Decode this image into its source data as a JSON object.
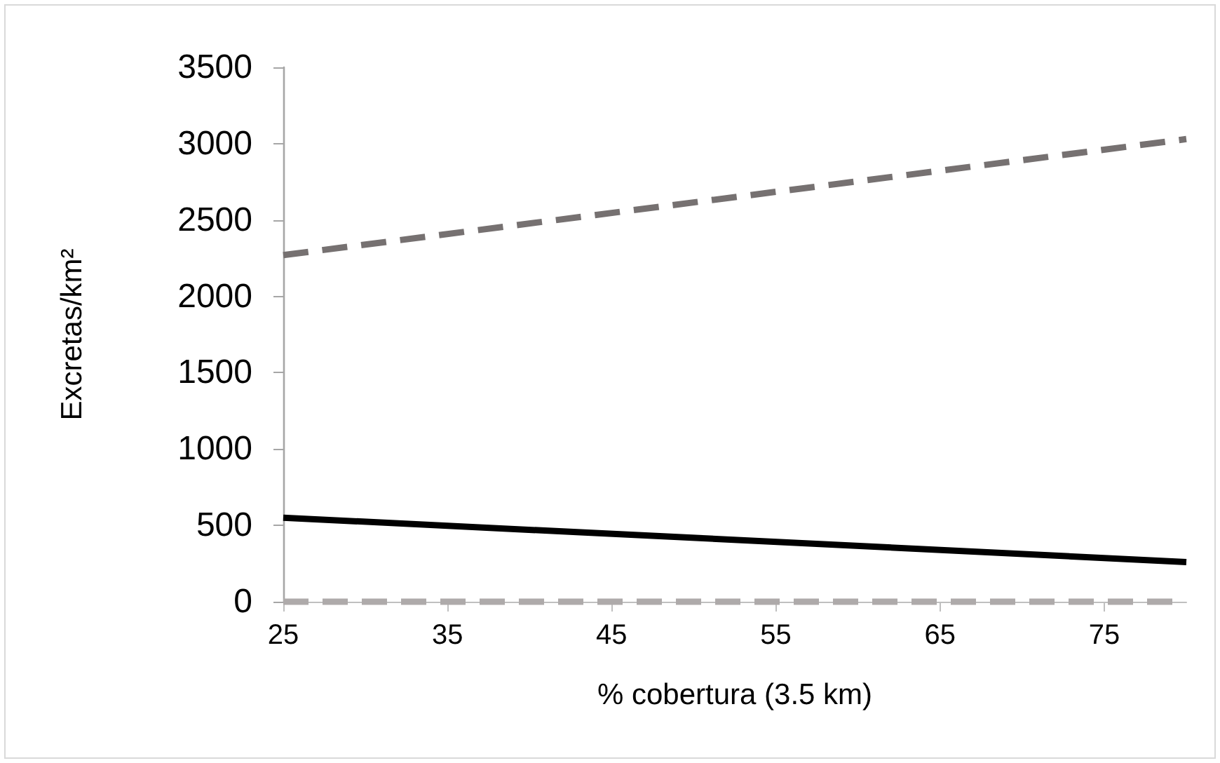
{
  "chart_data": {
    "type": "line",
    "xlabel": "% cobertura (3.5 km)",
    "ylabel": "Excretas/km²",
    "xlim": [
      25,
      80
    ],
    "xticks": [
      25,
      35,
      45,
      55,
      65,
      75
    ],
    "ylim": [
      0,
      3500
    ],
    "yticks": [
      0,
      500,
      1000,
      1500,
      2000,
      2500,
      3000,
      3500
    ],
    "grid": false,
    "marker": "none",
    "x": [
      25,
      80
    ],
    "series": [
      {
        "color": "#767171",
        "line_style": "dashed",
        "values": [
          2270,
          3030
        ]
      },
      {
        "color": "#000000",
        "line_style": "solid",
        "values": [
          550,
          260
        ]
      },
      {
        "color": "#aeaaaa",
        "line_style": "dashed",
        "values": [
          0,
          0
        ]
      }
    ]
  }
}
